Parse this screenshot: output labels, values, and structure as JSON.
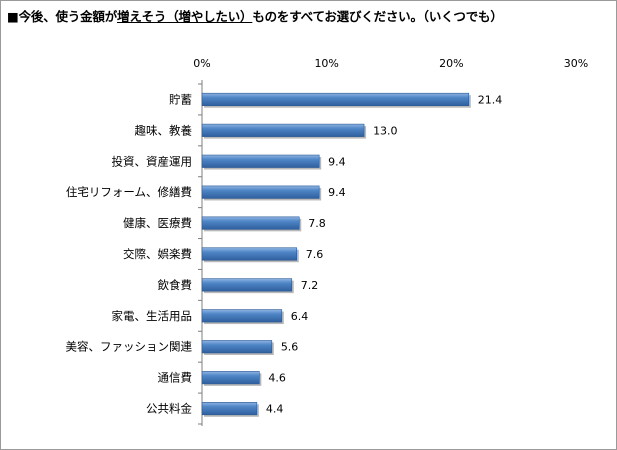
{
  "chart_data": {
    "type": "bar",
    "orientation": "horizontal",
    "title_prefix": "■今後、使う金額が",
    "title_emphasis": "増えそう（増やしたい）",
    "title_suffix": "ものをすべてお選びください。（いくつでも）",
    "categories": [
      "貯蓄",
      "趣味、教養",
      "投資、資産運用",
      "住宅リフォーム、修繕費",
      "健康、医療費",
      "交際、娯楽費",
      "飲食費",
      "家電、生活用品",
      "美容、ファッション関連",
      "通信費",
      "公共料金"
    ],
    "values": [
      21.4,
      13.0,
      9.4,
      9.4,
      7.8,
      7.6,
      7.2,
      6.4,
      5.6,
      4.6,
      4.4
    ],
    "value_labels": [
      "21.4",
      "13.0",
      "9.4",
      "9.4",
      "7.8",
      "7.6",
      "7.2",
      "6.4",
      "5.6",
      "4.6",
      "4.4"
    ],
    "xlim": [
      0,
      30
    ],
    "xticks": [
      0,
      10,
      20,
      30
    ],
    "xtick_labels": [
      "0%",
      "10%",
      "20%",
      "30%"
    ],
    "xlabel": "",
    "ylabel": "",
    "grid": false,
    "legend": "none",
    "bar_color": "#4a7ebb"
  }
}
